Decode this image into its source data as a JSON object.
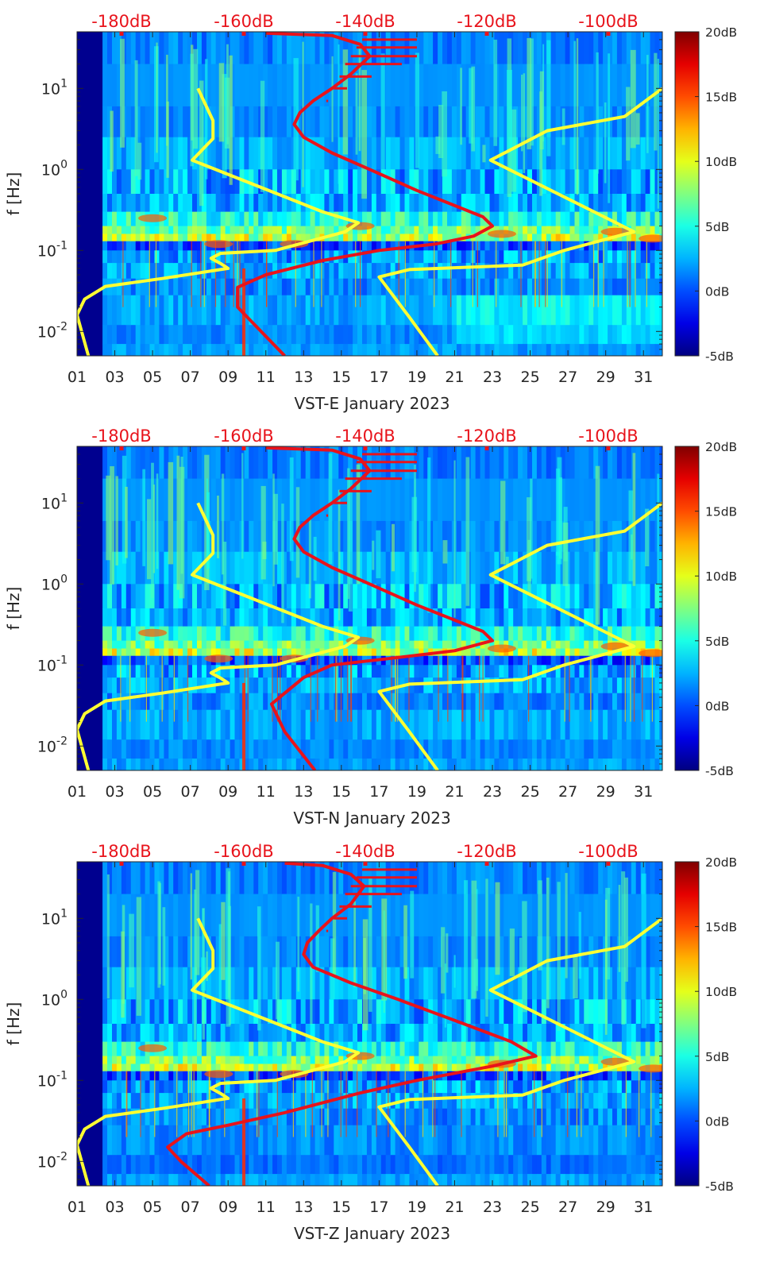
{
  "chart_data": [
    {
      "type": "heatmap",
      "title": "VST-E January 2023",
      "xlabel": "VST-E January 2023",
      "ylabel": "f [Hz]",
      "x_ticks": [
        "01",
        "03",
        "05",
        "07",
        "09",
        "11",
        "13",
        "15",
        "17",
        "19",
        "21",
        "23",
        "25",
        "27",
        "29",
        "31"
      ],
      "y_ticks": [
        {
          "value": 0.01,
          "base": "10",
          "exp": "-2"
        },
        {
          "value": 0.1,
          "base": "10",
          "exp": "-1"
        },
        {
          "value": 1,
          "base": "10",
          "exp": "0"
        },
        {
          "value": 10,
          "base": "10",
          "exp": "1"
        }
      ],
      "ylim": [
        0.005,
        50
      ],
      "xlim": [
        1,
        32
      ],
      "yscale": "log",
      "top_axis_ticks": [
        "-180dB",
        "-160dB",
        "-140dB",
        "-120dB",
        "-100dB"
      ],
      "colorbar": {
        "ticks": [
          "-5dB",
          "0dB",
          "5dB",
          "10dB",
          "15dB",
          "20dB"
        ],
        "range": [
          -5,
          20
        ],
        "colormap": "jet"
      },
      "series": [
        {
          "color": "#ffff33",
          "points": [
            [
              1.6,
              0.005
            ],
            [
              1.0,
              0.016
            ],
            [
              1.4,
              0.025
            ],
            [
              2.5,
              0.036
            ],
            [
              5.5,
              0.045
            ],
            [
              9.0,
              0.06
            ],
            [
              8.6,
              0.069
            ],
            [
              8.1,
              0.08
            ],
            [
              8.6,
              0.092
            ],
            [
              11.5,
              0.1
            ],
            [
              15.2,
              0.17
            ],
            [
              15.9,
              0.22
            ],
            [
              14.0,
              0.3
            ],
            [
              7.1,
              1.3
            ],
            [
              8.2,
              2.4
            ],
            [
              8.2,
              4.0
            ],
            [
              7.4,
              10
            ]
          ]
        },
        {
          "color": "#ffff33",
          "points": [
            [
              20.1,
              0.005
            ],
            [
              18.6,
              0.015
            ],
            [
              17.0,
              0.047
            ],
            [
              18.6,
              0.058
            ],
            [
              24.6,
              0.066
            ],
            [
              26.8,
              0.1
            ],
            [
              30.5,
              0.17
            ],
            [
              22.9,
              1.3
            ],
            [
              25.9,
              3.0
            ],
            [
              30.0,
              4.5
            ],
            [
              32.0,
              10
            ]
          ]
        },
        {
          "color": "#e8131b",
          "points": [
            [
              12.0,
              0.005
            ],
            [
              9.5,
              0.02
            ],
            [
              9.5,
              0.035
            ],
            [
              11.0,
              0.05
            ],
            [
              14.0,
              0.075
            ],
            [
              17.0,
              0.1
            ],
            [
              20.0,
              0.12
            ],
            [
              22.0,
              0.15
            ],
            [
              23.0,
              0.2
            ],
            [
              22.5,
              0.26
            ],
            [
              19.0,
              0.55
            ],
            [
              16.5,
              1.0
            ],
            [
              14.5,
              1.6
            ],
            [
              13.0,
              2.5
            ],
            [
              12.5,
              3.6
            ],
            [
              12.8,
              5.0
            ],
            [
              13.5,
              7.0
            ],
            [
              14.5,
              10
            ],
            [
              15.5,
              15
            ],
            [
              16.5,
              25
            ],
            [
              16.0,
              35
            ],
            [
              14.5,
              45
            ],
            [
              11.0,
              48
            ]
          ]
        }
      ]
    },
    {
      "type": "heatmap",
      "title": "VST-N January 2023",
      "xlabel": "VST-N January 2023",
      "ylabel": "f [Hz]",
      "x_ticks": [
        "01",
        "03",
        "05",
        "07",
        "09",
        "11",
        "13",
        "15",
        "17",
        "19",
        "21",
        "23",
        "25",
        "27",
        "29",
        "31"
      ],
      "y_ticks": [
        {
          "value": 0.01,
          "base": "10",
          "exp": "-2"
        },
        {
          "value": 0.1,
          "base": "10",
          "exp": "-1"
        },
        {
          "value": 1,
          "base": "10",
          "exp": "0"
        },
        {
          "value": 10,
          "base": "10",
          "exp": "1"
        }
      ],
      "ylim": [
        0.005,
        50
      ],
      "xlim": [
        1,
        32
      ],
      "yscale": "log",
      "top_axis_ticks": [
        "-180dB",
        "-160dB",
        "-140dB",
        "-120dB",
        "-100dB"
      ],
      "colorbar": {
        "ticks": [
          "-5dB",
          "0dB",
          "5dB",
          "10dB",
          "15dB",
          "20dB"
        ],
        "range": [
          -5,
          20
        ],
        "colormap": "jet"
      },
      "series": [
        {
          "color": "#ffff33",
          "points": [
            [
              1.6,
              0.005
            ],
            [
              1.0,
              0.016
            ],
            [
              1.4,
              0.025
            ],
            [
              2.5,
              0.036
            ],
            [
              5.5,
              0.045
            ],
            [
              9.0,
              0.06
            ],
            [
              8.6,
              0.069
            ],
            [
              8.1,
              0.08
            ],
            [
              8.6,
              0.092
            ],
            [
              11.5,
              0.1
            ],
            [
              15.2,
              0.17
            ],
            [
              15.9,
              0.22
            ],
            [
              14.0,
              0.3
            ],
            [
              7.1,
              1.3
            ],
            [
              8.2,
              2.4
            ],
            [
              8.2,
              4.0
            ],
            [
              7.4,
              10
            ]
          ]
        },
        {
          "color": "#ffff33",
          "points": [
            [
              20.1,
              0.005
            ],
            [
              18.6,
              0.015
            ],
            [
              17.0,
              0.047
            ],
            [
              18.6,
              0.058
            ],
            [
              24.6,
              0.066
            ],
            [
              26.8,
              0.1
            ],
            [
              30.5,
              0.17
            ],
            [
              22.9,
              1.3
            ],
            [
              25.9,
              3.0
            ],
            [
              30.0,
              4.5
            ],
            [
              32.0,
              10
            ]
          ]
        },
        {
          "color": "#e8131b",
          "points": [
            [
              13.6,
              0.005
            ],
            [
              12.0,
              0.015
            ],
            [
              11.3,
              0.033
            ],
            [
              12.0,
              0.045
            ],
            [
              13.0,
              0.07
            ],
            [
              14.5,
              0.1
            ],
            [
              17.5,
              0.12
            ],
            [
              21.0,
              0.15
            ],
            [
              23.0,
              0.2
            ],
            [
              22.5,
              0.26
            ],
            [
              19.0,
              0.55
            ],
            [
              16.5,
              1.0
            ],
            [
              14.5,
              1.6
            ],
            [
              13.0,
              2.5
            ],
            [
              12.5,
              3.6
            ],
            [
              12.8,
              5.0
            ],
            [
              13.5,
              7.0
            ],
            [
              14.5,
              10
            ],
            [
              15.5,
              15
            ],
            [
              16.5,
              25
            ],
            [
              16.0,
              35
            ],
            [
              14.5,
              45
            ],
            [
              11.0,
              48
            ]
          ]
        }
      ]
    },
    {
      "type": "heatmap",
      "title": "VST-Z January 2023",
      "xlabel": "VST-Z January 2023",
      "ylabel": "f [Hz]",
      "x_ticks": [
        "01",
        "03",
        "05",
        "07",
        "09",
        "11",
        "13",
        "15",
        "17",
        "19",
        "21",
        "23",
        "25",
        "27",
        "29",
        "31"
      ],
      "y_ticks": [
        {
          "value": 0.01,
          "base": "10",
          "exp": "-2"
        },
        {
          "value": 0.1,
          "base": "10",
          "exp": "-1"
        },
        {
          "value": 1,
          "base": "10",
          "exp": "0"
        },
        {
          "value": 10,
          "base": "10",
          "exp": "1"
        }
      ],
      "ylim": [
        0.005,
        50
      ],
      "xlim": [
        1,
        32
      ],
      "yscale": "log",
      "top_axis_ticks": [
        "-180dB",
        "-160dB",
        "-140dB",
        "-120dB",
        "-100dB"
      ],
      "colorbar": {
        "ticks": [
          "-5dB",
          "0dB",
          "5dB",
          "10dB",
          "15dB",
          "20dB"
        ],
        "range": [
          -5,
          20
        ],
        "colormap": "jet"
      },
      "series": [
        {
          "color": "#ffff33",
          "points": [
            [
              1.6,
              0.005
            ],
            [
              1.0,
              0.016
            ],
            [
              1.4,
              0.025
            ],
            [
              2.5,
              0.036
            ],
            [
              5.5,
              0.045
            ],
            [
              9.0,
              0.06
            ],
            [
              8.6,
              0.069
            ],
            [
              8.1,
              0.08
            ],
            [
              8.6,
              0.092
            ],
            [
              11.5,
              0.1
            ],
            [
              15.2,
              0.17
            ],
            [
              15.9,
              0.22
            ],
            [
              14.0,
              0.3
            ],
            [
              7.1,
              1.3
            ],
            [
              8.2,
              2.4
            ],
            [
              8.2,
              4.0
            ],
            [
              7.4,
              10
            ]
          ]
        },
        {
          "color": "#ffff33",
          "points": [
            [
              20.1,
              0.005
            ],
            [
              18.6,
              0.015
            ],
            [
              17.0,
              0.047
            ],
            [
              18.6,
              0.058
            ],
            [
              24.6,
              0.066
            ],
            [
              26.8,
              0.1
            ],
            [
              30.5,
              0.17
            ],
            [
              22.9,
              1.3
            ],
            [
              25.9,
              3.0
            ],
            [
              30.0,
              4.5
            ],
            [
              32.0,
              10
            ]
          ]
        },
        {
          "color": "#e8131b",
          "points": [
            [
              8.0,
              0.005
            ],
            [
              6.5,
              0.01
            ],
            [
              5.8,
              0.015
            ],
            [
              6.8,
              0.022
            ],
            [
              9.0,
              0.028
            ],
            [
              12.0,
              0.04
            ],
            [
              16.0,
              0.07
            ],
            [
              19.0,
              0.1
            ],
            [
              23.0,
              0.15
            ],
            [
              25.3,
              0.2
            ],
            [
              24.0,
              0.3
            ],
            [
              21.0,
              0.55
            ],
            [
              18.0,
              1.0
            ],
            [
              15.5,
              1.6
            ],
            [
              13.5,
              2.5
            ],
            [
              13.0,
              3.6
            ],
            [
              13.2,
              5.0
            ],
            [
              13.8,
              7.0
            ],
            [
              14.5,
              10
            ],
            [
              15.5,
              15
            ],
            [
              16.2,
              25
            ],
            [
              15.5,
              35
            ],
            [
              14.0,
              45
            ],
            [
              12.0,
              48
            ]
          ]
        }
      ]
    }
  ]
}
